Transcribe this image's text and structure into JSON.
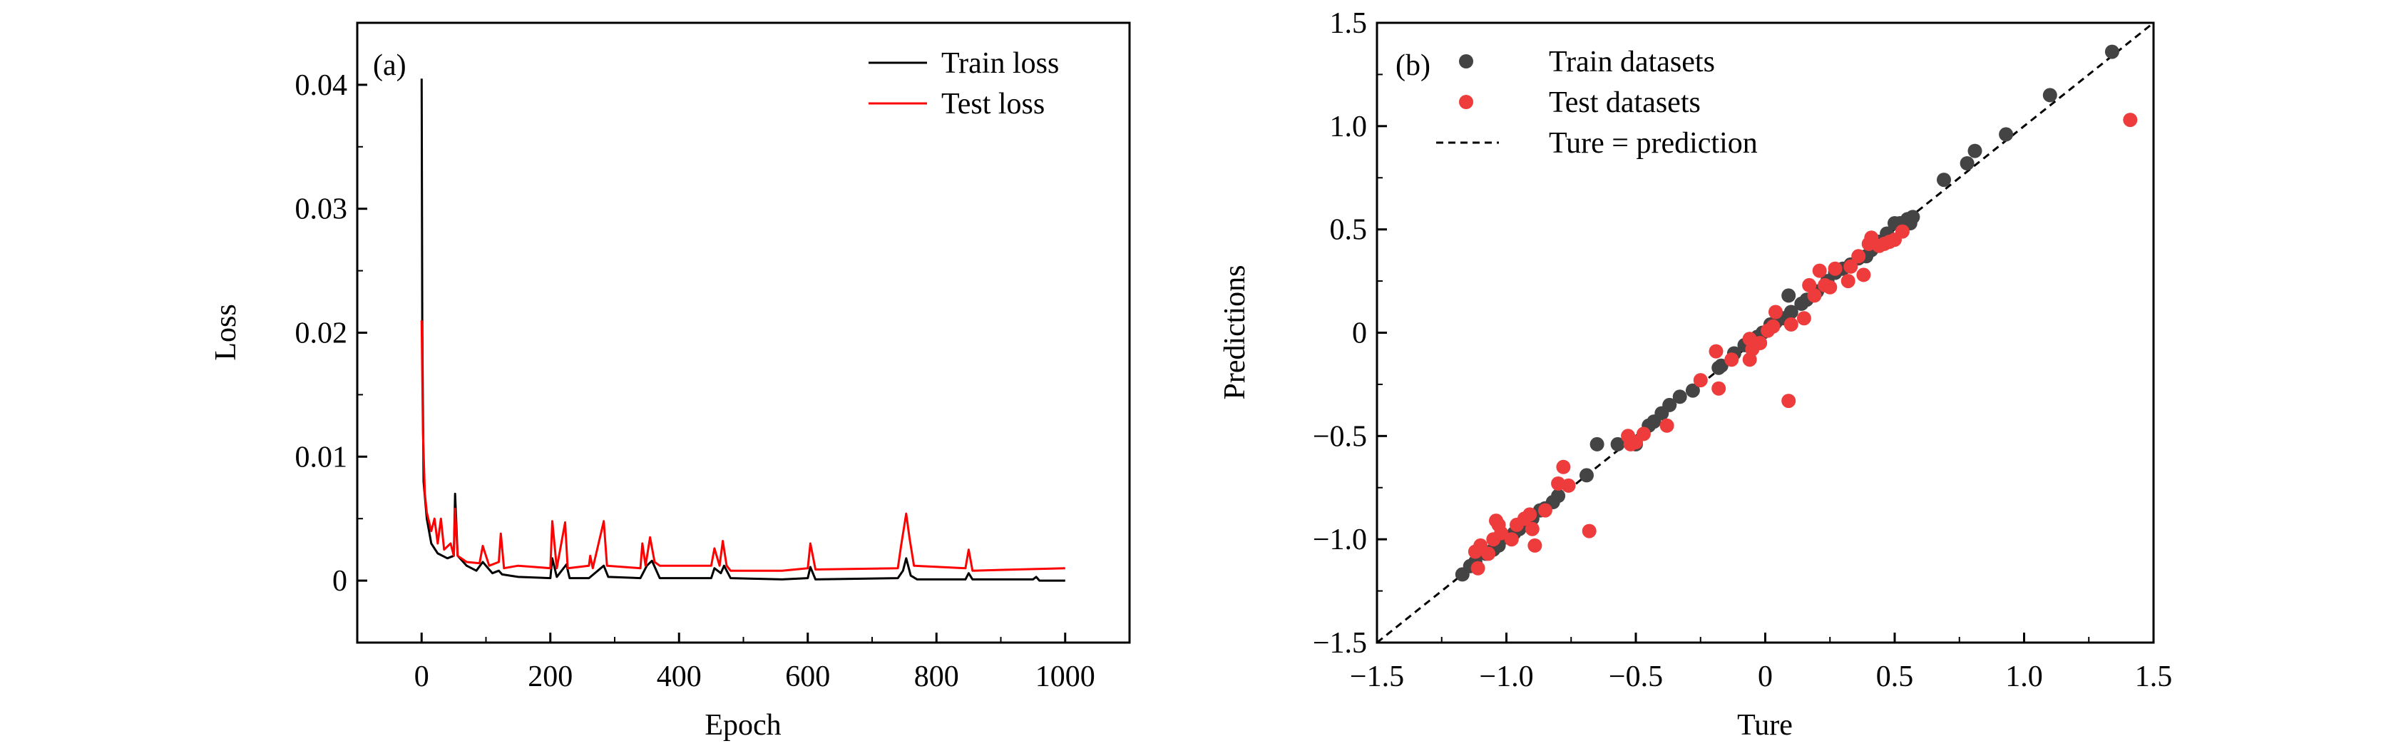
{
  "chart_data": [
    {
      "type": "line",
      "panel_label": "(a)",
      "xlabel": "Epoch",
      "ylabel": "Loss",
      "xlim": [
        -100,
        1100
      ],
      "ylim": [
        -0.005,
        0.045
      ],
      "xticks": [
        0,
        200,
        400,
        600,
        800,
        1000
      ],
      "xtick_labels": [
        "0",
        "200",
        "400",
        "600",
        "800",
        "1000"
      ],
      "yticks": [
        0,
        0.01,
        0.02,
        0.03,
        0.04
      ],
      "ytick_labels": [
        "0",
        "0.01",
        "0.02",
        "0.03",
        "0.04"
      ],
      "legend_position": "top-right",
      "series": [
        {
          "name": "Train loss",
          "color": "#000000",
          "points": [
            [
              0,
              0.0405
            ],
            [
              1,
              0.02
            ],
            [
              3,
              0.008
            ],
            [
              8,
              0.005
            ],
            [
              15,
              0.003
            ],
            [
              25,
              0.0022
            ],
            [
              40,
              0.0018
            ],
            [
              50,
              0.002
            ],
            [
              52,
              0.007
            ],
            [
              56,
              0.002
            ],
            [
              70,
              0.0012
            ],
            [
              85,
              0.0008
            ],
            [
              95,
              0.0015
            ],
            [
              110,
              0.0006
            ],
            [
              120,
              0.0008
            ],
            [
              125,
              0.0005
            ],
            [
              150,
              0.0003
            ],
            [
              200,
              0.0002
            ],
            [
              203,
              0.0018
            ],
            [
              210,
              0.0003
            ],
            [
              225,
              0.0013
            ],
            [
              230,
              0.0002
            ],
            [
              260,
              0.0002
            ],
            [
              283,
              0.0012
            ],
            [
              290,
              0.0003
            ],
            [
              340,
              0.0002
            ],
            [
              350,
              0.0012
            ],
            [
              358,
              0.0016
            ],
            [
              370,
              0.0002
            ],
            [
              450,
              0.0002
            ],
            [
              455,
              0.001
            ],
            [
              465,
              0.0006
            ],
            [
              470,
              0.0012
            ],
            [
              480,
              0.0002
            ],
            [
              560,
              0.0001
            ],
            [
              600,
              0.0002
            ],
            [
              604,
              0.0011
            ],
            [
              612,
              0.0001
            ],
            [
              740,
              0.0002
            ],
            [
              748,
              0.0008
            ],
            [
              753,
              0.0018
            ],
            [
              760,
              0.0004
            ],
            [
              770,
              0.0001
            ],
            [
              845,
              0.0001
            ],
            [
              850,
              0.0006
            ],
            [
              856,
              0.0001
            ],
            [
              950,
              0.0001
            ],
            [
              955,
              0.0003
            ],
            [
              960,
              0.0
            ],
            [
              1000,
              0.0
            ]
          ]
        },
        {
          "name": "Test loss",
          "color": "#ff0000",
          "points": [
            [
              0,
              0.021
            ],
            [
              2,
              0.012
            ],
            [
              5,
              0.007
            ],
            [
              8,
              0.0055
            ],
            [
              15,
              0.004
            ],
            [
              20,
              0.005
            ],
            [
              25,
              0.003
            ],
            [
              30,
              0.005
            ],
            [
              35,
              0.0025
            ],
            [
              45,
              0.003
            ],
            [
              50,
              0.002
            ],
            [
              52,
              0.0058
            ],
            [
              56,
              0.002
            ],
            [
              70,
              0.0015
            ],
            [
              90,
              0.0014
            ],
            [
              95,
              0.0028
            ],
            [
              105,
              0.0012
            ],
            [
              120,
              0.0015
            ],
            [
              123,
              0.0038
            ],
            [
              128,
              0.001
            ],
            [
              150,
              0.0012
            ],
            [
              200,
              0.001
            ],
            [
              203,
              0.0048
            ],
            [
              210,
              0.001
            ],
            [
              223,
              0.0047
            ],
            [
              227,
              0.001
            ],
            [
              260,
              0.0012
            ],
            [
              262,
              0.002
            ],
            [
              266,
              0.001
            ],
            [
              283,
              0.0048
            ],
            [
              288,
              0.0012
            ],
            [
              340,
              0.001
            ],
            [
              343,
              0.003
            ],
            [
              348,
              0.0012
            ],
            [
              355,
              0.0035
            ],
            [
              362,
              0.0015
            ],
            [
              370,
              0.0012
            ],
            [
              450,
              0.0012
            ],
            [
              455,
              0.0026
            ],
            [
              463,
              0.0012
            ],
            [
              468,
              0.0032
            ],
            [
              474,
              0.0012
            ],
            [
              480,
              0.0008
            ],
            [
              560,
              0.0008
            ],
            [
              600,
              0.001
            ],
            [
              604,
              0.003
            ],
            [
              612,
              0.0009
            ],
            [
              740,
              0.001
            ],
            [
              745,
              0.0028
            ],
            [
              753,
              0.0054
            ],
            [
              758,
              0.0035
            ],
            [
              765,
              0.0012
            ],
            [
              845,
              0.001
            ],
            [
              850,
              0.0025
            ],
            [
              856,
              0.0008
            ],
            [
              1000,
              0.001
            ]
          ]
        }
      ]
    },
    {
      "type": "scatter",
      "panel_label": "(b)",
      "xlabel": "Ture",
      "ylabel": "Predictions",
      "xlim": [
        -1.5,
        1.5
      ],
      "ylim": [
        -1.5,
        1.5
      ],
      "xticks": [
        -1.5,
        -1.0,
        -0.5,
        0,
        0.5,
        1.0,
        1.5
      ],
      "xtick_labels": [
        "−1.5",
        "−1.0",
        "−0.5",
        "0",
        "0.5",
        "1.0",
        "1.5"
      ],
      "yticks": [
        -1.5,
        -1.0,
        -0.5,
        0,
        0.5,
        1.0,
        1.5
      ],
      "ytick_labels": [
        "−1.5",
        "−1.0",
        "−0.5",
        "0",
        "0.5",
        "1.0",
        "1.5"
      ],
      "legend_position": "top-left",
      "reference_line": {
        "name": "Ture = prediction",
        "color": "#000000",
        "from": [
          -1.5,
          -1.5
        ],
        "to": [
          1.5,
          1.5
        ]
      },
      "series": [
        {
          "name": "Train datasets",
          "color": "#444444",
          "points": [
            [
              -1.17,
              -1.17
            ],
            [
              -1.14,
              -1.13
            ],
            [
              -1.12,
              -1.11
            ],
            [
              -1.08,
              -1.07
            ],
            [
              -1.05,
              -1.05
            ],
            [
              -1.03,
              -1.03
            ],
            [
              -1.0,
              -0.99
            ],
            [
              -0.97,
              -0.97
            ],
            [
              -0.95,
              -0.95
            ],
            [
              -0.92,
              -0.93
            ],
            [
              -0.9,
              -0.9
            ],
            [
              -0.87,
              -0.86
            ],
            [
              -0.85,
              -0.85
            ],
            [
              -0.82,
              -0.82
            ],
            [
              -0.8,
              -0.79
            ],
            [
              -0.69,
              -0.69
            ],
            [
              -0.65,
              -0.54
            ],
            [
              -0.57,
              -0.54
            ],
            [
              -0.5,
              -0.54
            ],
            [
              -0.45,
              -0.45
            ],
            [
              -0.43,
              -0.43
            ],
            [
              -0.4,
              -0.39
            ],
            [
              -0.37,
              -0.35
            ],
            [
              -0.33,
              -0.31
            ],
            [
              -0.28,
              -0.28
            ],
            [
              -0.18,
              -0.17
            ],
            [
              -0.17,
              -0.16
            ],
            [
              -0.12,
              -0.1
            ],
            [
              -0.08,
              -0.06
            ],
            [
              -0.06,
              -0.03
            ],
            [
              -0.03,
              -0.02
            ],
            [
              -0.01,
              0.0
            ],
            [
              0.02,
              0.04
            ],
            [
              0.04,
              0.05
            ],
            [
              0.07,
              0.07
            ],
            [
              0.09,
              0.18
            ],
            [
              0.1,
              0.1
            ],
            [
              0.14,
              0.14
            ],
            [
              0.16,
              0.16
            ],
            [
              0.2,
              0.2
            ],
            [
              0.24,
              0.25
            ],
            [
              0.27,
              0.29
            ],
            [
              0.3,
              0.31
            ],
            [
              0.33,
              0.33
            ],
            [
              0.36,
              0.36
            ],
            [
              0.39,
              0.37
            ],
            [
              0.41,
              0.4
            ],
            [
              0.44,
              0.44
            ],
            [
              0.47,
              0.48
            ],
            [
              0.5,
              0.53
            ],
            [
              0.52,
              0.53
            ],
            [
              0.55,
              0.55
            ],
            [
              0.57,
              0.56
            ],
            [
              0.56,
              0.53
            ],
            [
              0.69,
              0.74
            ],
            [
              0.78,
              0.82
            ],
            [
              0.81,
              0.88
            ],
            [
              0.93,
              0.96
            ],
            [
              1.1,
              1.15
            ],
            [
              1.34,
              1.36
            ]
          ]
        },
        {
          "name": "Test datasets",
          "color": "#ee3b3b",
          "points": [
            [
              -1.12,
              -1.06
            ],
            [
              -1.1,
              -1.03
            ],
            [
              -1.11,
              -1.14
            ],
            [
              -1.07,
              -1.07
            ],
            [
              -1.04,
              -0.91
            ],
            [
              -1.05,
              -1.0
            ],
            [
              -1.02,
              -0.97
            ],
            [
              -1.03,
              -0.93
            ],
            [
              -0.98,
              -1.0
            ],
            [
              -0.96,
              -0.93
            ],
            [
              -0.93,
              -0.9
            ],
            [
              -0.91,
              -0.88
            ],
            [
              -0.9,
              -0.95
            ],
            [
              -0.89,
              -1.03
            ],
            [
              -0.85,
              -0.86
            ],
            [
              -0.8,
              -0.73
            ],
            [
              -0.78,
              -0.65
            ],
            [
              -0.76,
              -0.74
            ],
            [
              -0.68,
              -0.96
            ],
            [
              -0.53,
              -0.5
            ],
            [
              -0.52,
              -0.54
            ],
            [
              -0.5,
              -0.53
            ],
            [
              -0.47,
              -0.49
            ],
            [
              -0.38,
              -0.45
            ],
            [
              -0.25,
              -0.23
            ],
            [
              -0.19,
              -0.09
            ],
            [
              -0.18,
              -0.27
            ],
            [
              -0.13,
              -0.13
            ],
            [
              -0.06,
              -0.13
            ],
            [
              -0.05,
              -0.08
            ],
            [
              -0.06,
              -0.03
            ],
            [
              -0.02,
              -0.05
            ],
            [
              0.01,
              0.01
            ],
            [
              0.04,
              0.1
            ],
            [
              0.03,
              0.03
            ],
            [
              0.1,
              0.04
            ],
            [
              0.09,
              -0.33
            ],
            [
              0.15,
              0.07
            ],
            [
              0.17,
              0.23
            ],
            [
              0.19,
              0.18
            ],
            [
              0.21,
              0.3
            ],
            [
              0.23,
              0.23
            ],
            [
              0.25,
              0.22
            ],
            [
              0.27,
              0.31
            ],
            [
              0.32,
              0.25
            ],
            [
              0.33,
              0.32
            ],
            [
              0.36,
              0.37
            ],
            [
              0.38,
              0.28
            ],
            [
              0.4,
              0.43
            ],
            [
              0.41,
              0.46
            ],
            [
              0.44,
              0.42
            ],
            [
              0.46,
              0.43
            ],
            [
              0.48,
              0.44
            ],
            [
              0.5,
              0.45
            ],
            [
              0.53,
              0.49
            ],
            [
              1.41,
              1.03
            ]
          ]
        }
      ]
    }
  ]
}
